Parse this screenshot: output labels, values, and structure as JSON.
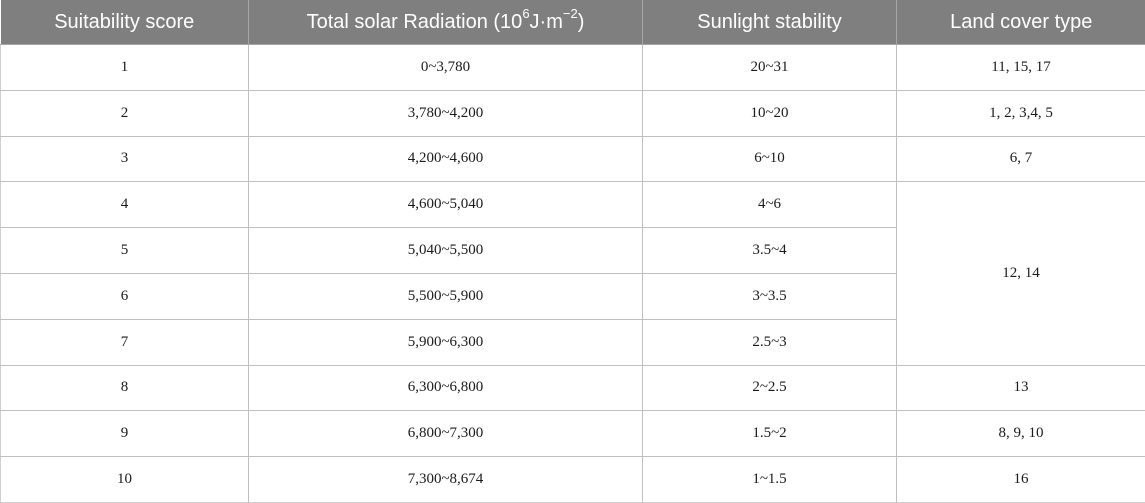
{
  "table": {
    "headers": {
      "score": "Suitability score",
      "radiation_prefix": "Total solar Radiation (10",
      "radiation_sup1": "6",
      "radiation_mid": "J·m",
      "radiation_sup2": "−2",
      "radiation_suffix": ")",
      "stability": "Sunlight stability",
      "landcover": "Land cover type"
    },
    "rows": [
      {
        "score": "1",
        "radiation": "0~3,780",
        "stability": "20~31",
        "landcover": "11, 15, 17"
      },
      {
        "score": "2",
        "radiation": "3,780~4,200",
        "stability": "10~20",
        "landcover": "1, 2, 3,4, 5"
      },
      {
        "score": "3",
        "radiation": "4,200~4,600",
        "stability": "6~10",
        "landcover": "6, 7"
      },
      {
        "score": "4",
        "radiation": "4,600~5,040",
        "stability": "4~6",
        "landcover": "12, 14"
      },
      {
        "score": "5",
        "radiation": "5,040~5,500",
        "stability": "3.5~4"
      },
      {
        "score": "6",
        "radiation": "5,500~5,900",
        "stability": "3~3.5"
      },
      {
        "score": "7",
        "radiation": "5,900~6,300",
        "stability": "2.5~3"
      },
      {
        "score": "8",
        "radiation": "6,300~6,800",
        "stability": "2~2.5",
        "landcover": "13"
      },
      {
        "score": "9",
        "radiation": "6,800~7,300",
        "stability": "1.5~2",
        "landcover": "8, 9, 10"
      },
      {
        "score": "10",
        "radiation": "7,300~8,674",
        "stability": "1~1.5",
        "landcover": "16"
      }
    ]
  }
}
